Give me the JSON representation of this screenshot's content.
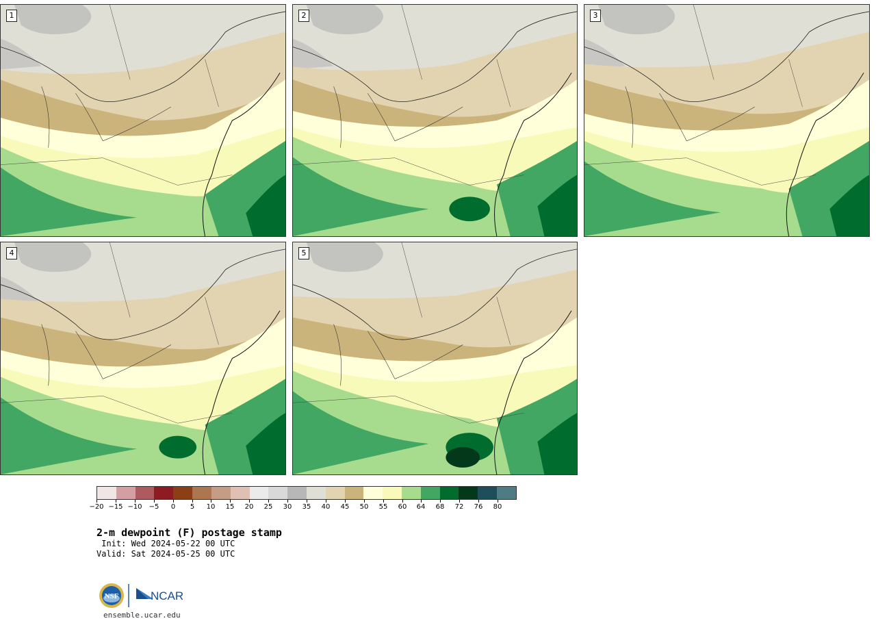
{
  "panels": [
    {
      "label": "1"
    },
    {
      "label": "2"
    },
    {
      "label": "3"
    },
    {
      "label": "4"
    },
    {
      "label": "5"
    }
  ],
  "colorbar": {
    "ticks": [
      "−20",
      "−15",
      "−10",
      "−5",
      "0",
      "5",
      "10",
      "15",
      "20",
      "25",
      "30",
      "35",
      "40",
      "45",
      "50",
      "55",
      "60",
      "64",
      "68",
      "72",
      "76",
      "80"
    ],
    "colors": [
      "#f0e6e6",
      "#d39fa2",
      "#ad5b60",
      "#8c1c22",
      "#8a3f14",
      "#ac7651",
      "#c59c84",
      "#dfc0b2",
      "#ebebeb",
      "#d9d9d9",
      "#b7b7b7",
      "#e0dfd6",
      "#e2d4b0",
      "#cbb37c",
      "#ffffd9",
      "#f8faba",
      "#a7dc8f",
      "#42a762",
      "#006d2e",
      "#03391a",
      "#1d4e5a",
      "#4f7c82"
    ]
  },
  "title": {
    "main": "2-m dewpoint (F) postage stamp",
    "init": " Init: Wed 2024-05-22 00 UTC",
    "valid": "Valid: Sat 2024-05-25 00 UTC"
  },
  "footer": {
    "nsf_logo": "NSF",
    "ncar_logo": "NCAR",
    "url": "ensemble.ucar.edu"
  }
}
